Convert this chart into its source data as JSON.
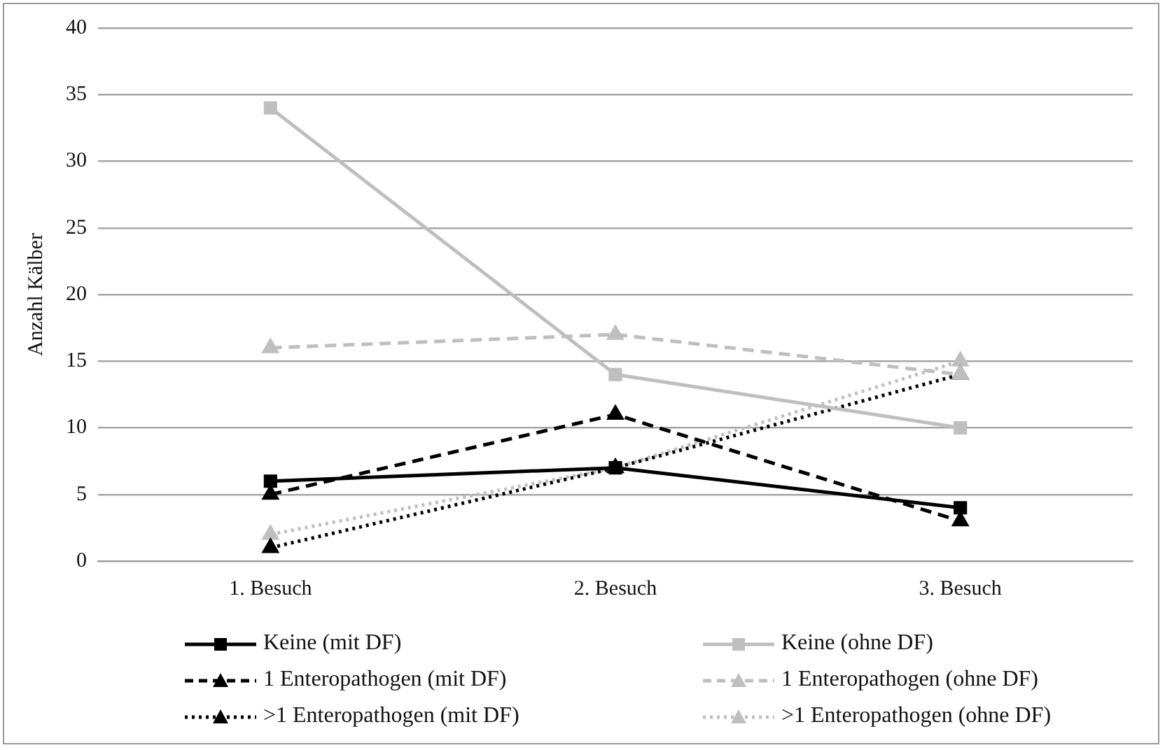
{
  "chart_data": {
    "type": "line",
    "ylabel": "Anzahl Kälber",
    "categories": [
      "1. Besuch",
      "2. Besuch",
      "3. Besuch"
    ],
    "ylim": [
      0,
      40
    ],
    "yticks": [
      0,
      5,
      10,
      15,
      20,
      25,
      30,
      35,
      40
    ],
    "grid": "y",
    "legend": "bottom",
    "series": [
      {
        "name": "Keine (mit DF)",
        "color": "#000000",
        "values": [
          6,
          7,
          4
        ],
        "marker": "square",
        "line_style": "solid"
      },
      {
        "name": "Keine (ohne DF)",
        "color": "#bfbfbf",
        "values": [
          34,
          14,
          10
        ],
        "marker": "square",
        "line_style": "solid"
      },
      {
        "name": "1 Enteropathogen (mit DF)",
        "color": "#000000",
        "values": [
          5,
          11,
          3
        ],
        "marker": "triangle",
        "line_style": "dashed"
      },
      {
        "name": "1 Enteropathogen (ohne DF)",
        "color": "#bfbfbf",
        "values": [
          16,
          17,
          14
        ],
        "marker": "triangle",
        "line_style": "dashed"
      },
      {
        "name": ">1 Enteropathogen (mit DF)",
        "color": "#000000",
        "values": [
          1,
          7,
          14
        ],
        "marker": "triangle",
        "line_style": "dotted"
      },
      {
        "name": ">1 Enteropathogen (ohne DF)",
        "color": "#bfbfbf",
        "values": [
          2,
          7,
          15
        ],
        "marker": "triangle",
        "line_style": "dotted"
      }
    ]
  }
}
